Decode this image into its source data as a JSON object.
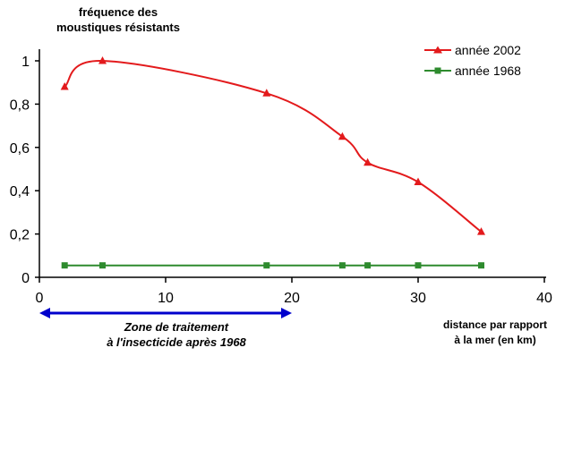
{
  "chart_data": {
    "type": "line",
    "ylabel_lines": [
      "fréquence des",
      "moustiques résistants"
    ],
    "xlabel_lines": [
      "distance par rapport",
      "à la mer (en km)"
    ],
    "xlim": [
      0,
      40
    ],
    "ylim": [
      0,
      1.1
    ],
    "x_ticks": [
      0,
      10,
      20,
      30,
      40
    ],
    "x_tick_labels": [
      "0",
      "10",
      "20",
      "30",
      "40"
    ],
    "y_ticks": [
      0,
      0.2,
      0.4,
      0.6,
      0.8,
      1
    ],
    "y_tick_labels": [
      "0",
      "0,2",
      "0,4",
      "0,6",
      "0,8",
      "1"
    ],
    "grid": false,
    "legend": "top-right",
    "series": [
      {
        "name": "année 2002",
        "color": "#e31a1c",
        "marker": "triangle",
        "x": [
          2,
          5,
          18,
          24,
          26,
          30,
          35
        ],
        "values": [
          0.88,
          1.0,
          0.85,
          0.65,
          0.53,
          0.44,
          0.21
        ]
      },
      {
        "name": "année 1968",
        "color": "#2e8b2e",
        "marker": "square",
        "x": [
          2,
          5,
          18,
          24,
          26,
          30,
          35
        ],
        "values": [
          0.055,
          0.055,
          0.055,
          0.055,
          0.055,
          0.055,
          0.055
        ]
      }
    ],
    "annotation": {
      "text_lines": [
        "Zone de traitement",
        "à l'insecticide après 1968"
      ],
      "x_range": [
        0,
        20
      ],
      "color": "#0000cc"
    }
  }
}
